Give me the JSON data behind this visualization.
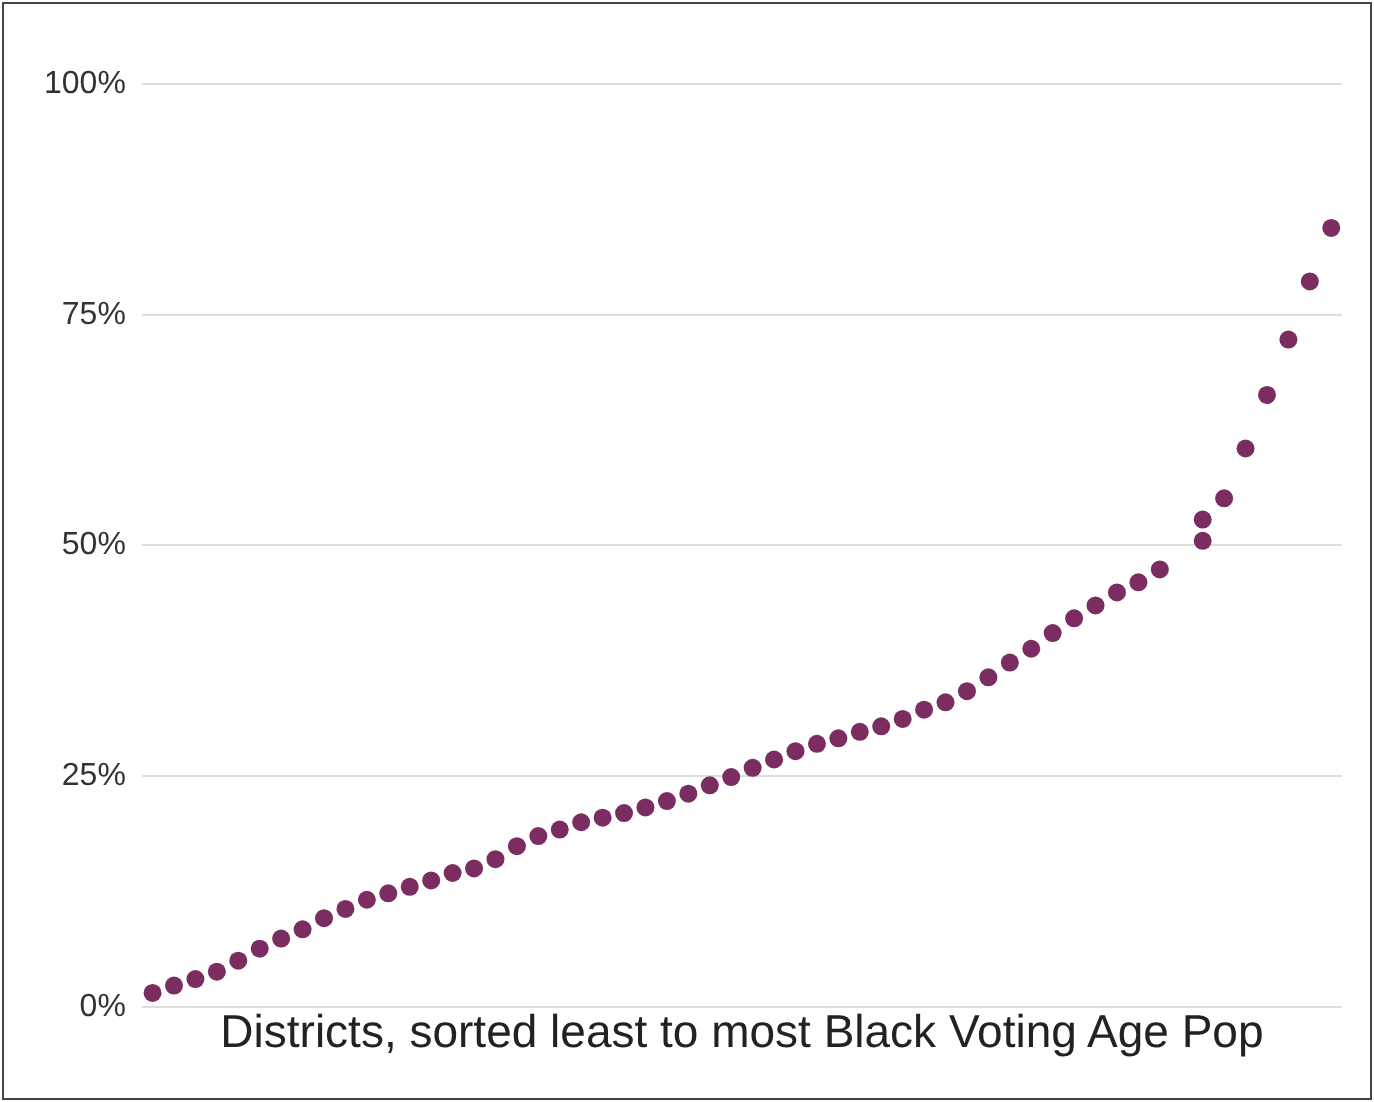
{
  "chart_data": {
    "type": "scatter",
    "xlabel": "Districts, sorted least to most Black Voting Age Pop",
    "categories": [
      null,
      null,
      null,
      null,
      null,
      null,
      null,
      null,
      null,
      null,
      null,
      null,
      null,
      null,
      null,
      null,
      null,
      null,
      null,
      null,
      null,
      null,
      null,
      null,
      null,
      null,
      null,
      null,
      null,
      null,
      null,
      null,
      null,
      null,
      null,
      null,
      null,
      null,
      null,
      null,
      null,
      null,
      null,
      null,
      null,
      null,
      null,
      null,
      null,
      null,
      null,
      null,
      null,
      null,
      null,
      null
    ],
    "series": [
      {
        "color": "#7b2d62",
        "values": [
          1.5,
          2.3,
          3.0,
          3.8,
          5.0,
          6.3,
          7.4,
          8.4,
          9.6,
          10.6,
          11.6,
          12.3,
          13.0,
          13.7,
          14.5,
          15.0,
          16.0,
          17.4,
          18.5,
          19.2,
          20.0,
          20.5,
          21.0,
          21.6,
          22.3,
          23.1,
          24.0,
          24.9,
          25.9,
          26.8,
          27.7,
          28.5,
          29.1,
          29.8,
          30.4,
          31.2,
          32.2,
          33.0,
          34.2,
          35.7,
          37.3,
          38.8,
          40.5,
          42.1,
          43.5,
          44.9,
          46.0,
          47.4,
          null,
          50.5,
          55.1,
          60.5,
          66.3,
          72.3,
          78.6,
          84.4
        ]
      },
      {
        "color": "#7b2d62",
        "values": [
          null,
          null,
          null,
          null,
          null,
          null,
          null,
          null,
          null,
          null,
          null,
          null,
          null,
          null,
          null,
          null,
          null,
          null,
          null,
          null,
          null,
          null,
          null,
          null,
          null,
          null,
          null,
          null,
          null,
          null,
          null,
          null,
          null,
          null,
          null,
          null,
          null,
          null,
          null,
          null,
          null,
          null,
          null,
          null,
          null,
          null,
          null,
          null,
          null,
          52.8,
          null,
          null,
          null,
          null,
          null,
          null
        ]
      }
    ],
    "ylim": [
      0,
      100
    ],
    "yticks": [
      {
        "value": 0,
        "label": "0%"
      },
      {
        "value": 25,
        "label": "25%"
      },
      {
        "value": 50,
        "label": "50%"
      },
      {
        "value": 75,
        "label": "75%"
      },
      {
        "value": 100,
        "label": "100%"
      }
    ],
    "grid": "y",
    "legend": false,
    "tick_labels": "y",
    "marker": "circle"
  }
}
